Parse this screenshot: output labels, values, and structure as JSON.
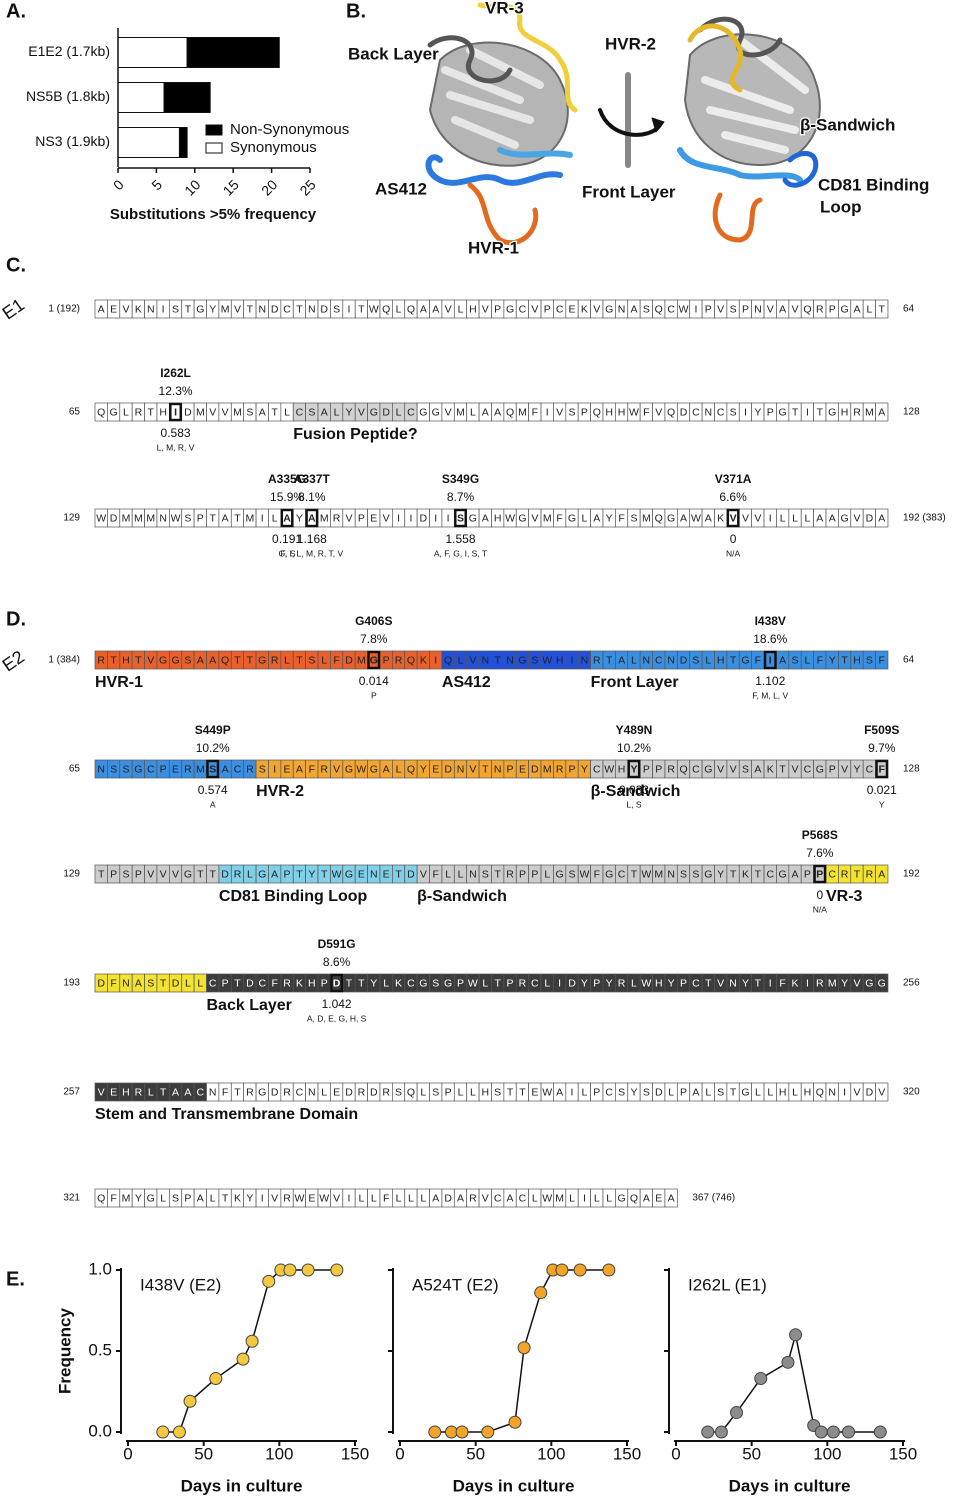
{
  "panel_labels": [
    "A.",
    "B.",
    "C.",
    "D.",
    "E."
  ],
  "chart_data": [
    {
      "type": "bar",
      "orientation": "horizontal",
      "stacked": true,
      "categories": [
        "E1E2 (1.7kb)",
        "NS5B (1.8kb)",
        "NS3 (1.9kb)"
      ],
      "series": [
        {
          "name": "Synonymous",
          "color": "#ffffff",
          "values": [
            9,
            6,
            8
          ]
        },
        {
          "name": "Non-Synonymous",
          "color": "#000000",
          "values": [
            12,
            6,
            1
          ]
        }
      ],
      "xlim": [
        0,
        25
      ],
      "xticks": [
        0,
        5,
        10,
        15,
        20,
        25
      ],
      "xlabel": "Substitutions >5% frequency"
    },
    {
      "type": "line",
      "title": "I438V (E2)",
      "ylabel": "Frequency",
      "xlabel": "Days in culture",
      "x": [
        23,
        34,
        41,
        58,
        76,
        82,
        93,
        101,
        107,
        119,
        138
      ],
      "values": [
        0,
        0,
        0.19,
        0.33,
        0.45,
        0.56,
        0.93,
        1,
        1,
        1,
        1
      ],
      "color": "#f5c842",
      "xlim": [
        0,
        150
      ],
      "xticks": [
        0,
        50,
        100,
        150
      ],
      "ylim": [
        0,
        1
      ],
      "yticks": [
        {
          "value": 0,
          "label": "0.0"
        },
        {
          "value": 0.5,
          "label": "0.5"
        },
        {
          "value": 1,
          "label": "1.0"
        }
      ]
    },
    {
      "type": "line",
      "title": "A524T (E2)",
      "xlabel": "Days in culture",
      "x": [
        23,
        34,
        41,
        58,
        76,
        82,
        93,
        101,
        107,
        119,
        138
      ],
      "values": [
        0,
        0,
        0,
        0,
        0.06,
        0.52,
        0.86,
        1,
        1,
        1,
        1
      ],
      "color": "#f2a428",
      "xlim": [
        0,
        150
      ],
      "xticks": [
        0,
        50,
        100,
        150
      ],
      "ylim": [
        0,
        1
      ],
      "yticks": [
        {
          "value": 0,
          "label": "0.0"
        },
        {
          "value": 0.5,
          "label": "0.5"
        },
        {
          "value": 1,
          "label": "1.0"
        }
      ]
    },
    {
      "type": "line",
      "title": "I262L (E1)",
      "xlabel": "Days in culture",
      "x": [
        21,
        30,
        40,
        56,
        74,
        79,
        91,
        96,
        104,
        114,
        135
      ],
      "values": [
        0,
        0,
        0.12,
        0.33,
        0.43,
        0.6,
        0.04,
        0,
        0,
        0,
        0
      ],
      "color": "#8c8c8c",
      "xlim": [
        0,
        150
      ],
      "xticks": [
        0,
        50,
        100,
        150
      ],
      "ylim": [
        0,
        1
      ],
      "yticks": [
        {
          "value": 0,
          "label": "0.0"
        },
        {
          "value": 0.5,
          "label": "0.5"
        },
        {
          "value": 1,
          "label": "1.0"
        }
      ]
    }
  ],
  "structure_labels": [
    {
      "text": "VR-3",
      "color": "#efd630"
    },
    {
      "text": "Back Layer",
      "color": "#4a4a4a"
    },
    {
      "text": "HVR-2",
      "color": "#f0a020"
    },
    {
      "text": "β-Sandwich",
      "color": "#a8a8a8"
    },
    {
      "text": "AS412",
      "color": "#1f3fb8"
    },
    {
      "text": "Front Layer",
      "color": "#3b8fe0"
    },
    {
      "text": "CD81 Binding",
      "color": "#5ab8d8"
    },
    {
      "text": "Loop",
      "color": "#5ab8d8"
    },
    {
      "text": "HVR-1",
      "color": "#d9541e"
    }
  ],
  "sequences": [
    {
      "name": "E1",
      "rows": [
        {
          "start": "1 (192)",
          "end": 64,
          "sequence": "AEVKNISTGYMVTNDCTNDSITWQLQAAVLHVPGCVPCEKVGNASQCWIPVSPNVAVQRPGALT",
          "regions": [],
          "mutations": []
        },
        {
          "start": 65,
          "end": 128,
          "sequence": "QGLRTHIDMVVMSATLCSALYVGDLCGGVMLAAQMFIVSPQHHWFVQDCNCSIYPGTITGHRMA",
          "regions": [
            {
              "from": 17,
              "to": 26,
              "color": "#d2d2d2",
              "label": "Fusion Peptide?",
              "label_color": "#a8a8a8"
            }
          ],
          "mutations": [
            {
              "position": 7,
              "name": "I262L",
              "frequency": "12.3%",
              "score": 0.583,
              "alternatives": "L, M, R, V"
            }
          ]
        },
        {
          "start": 129,
          "end": "192 (383)",
          "sequence": "WDMMMNWSPTATMILAYAMRVPEVIIDIISGAHWGVMFGLAYFSMQGAWAKVVVILLLAAGVDA",
          "regions": [],
          "mutations": [
            {
              "position": 16,
              "name": "A335G",
              "frequency": "15.9%",
              "score": 0.191,
              "alternatives": "G, S"
            },
            {
              "position": 18,
              "name": "A337T",
              "frequency": "8.1%",
              "score": 1.168,
              "alternatives": "F, I, L, M, R, T, V"
            },
            {
              "position": 30,
              "name": "S349G",
              "frequency": "8.7%",
              "score": 1.558,
              "alternatives": "A, F, G, I, S, T"
            },
            {
              "position": 52,
              "name": "V371A",
              "frequency": "6.6%",
              "score": 0,
              "alternatives": "N/A"
            }
          ]
        }
      ]
    },
    {
      "name": "E2",
      "rows": [
        {
          "start": "1 (384)",
          "end": 64,
          "sequence": "RTHTVGGSAAQTTGRLTSLFDMGPRQKIQLVNTNGSWHINRTALNCNDSLHTGFIASLFYTHSF",
          "regions": [
            {
              "from": 1,
              "to": 28,
              "color": "#e8602c",
              "label": "HVR-1",
              "label_color": "#d9541e"
            },
            {
              "from": 29,
              "to": 40,
              "color": "#2350d8",
              "label": "AS412",
              "label_color": "#1f3fb8"
            },
            {
              "from": 41,
              "to": 64,
              "color": "#3b8fe0",
              "label": "Front Layer",
              "label_color": "#3b8fe0"
            }
          ],
          "mutations": [
            {
              "position": 23,
              "name": "G406S",
              "frequency": "7.8%",
              "score": 0.014,
              "alternatives": "P"
            },
            {
              "position": 55,
              "name": "I438V",
              "frequency": "18.6%",
              "score": 1.102,
              "alternatives": "F, M, L, V"
            }
          ]
        },
        {
          "start": 65,
          "end": 128,
          "sequence": "NSSGCPERMSACRSIEAFRVGWGALQYEDNVTNPEDMRPYCWHYPPRQCGVVSAKTVCGPVYCF",
          "regions": [
            {
              "from": 1,
              "to": 13,
              "color": "#3b8fe0"
            },
            {
              "from": 14,
              "to": 40,
              "color": "#f2a530",
              "label": "HVR-2",
              "label_color": "#f0a020"
            },
            {
              "from": 41,
              "to": 64,
              "color": "#cccccc",
              "label": "β-Sandwich",
              "label_color": "#a8a8a8"
            }
          ],
          "mutations": [
            {
              "position": 10,
              "name": "S449P",
              "frequency": "10.2%",
              "score": 0.574,
              "alternatives": "A"
            },
            {
              "position": 44,
              "name": "Y489N",
              "frequency": "10.2%",
              "score": 0.033,
              "alternatives": "L, S"
            },
            {
              "position": 64,
              "name": "F509S",
              "frequency": "9.7%",
              "score": 0.021,
              "alternatives": "Y"
            }
          ]
        },
        {
          "start": 129,
          "end": 192,
          "sequence": "TPSPVVVGTTDRLGAPTYTWGENETDVFLLNSTRPPLGSWFGCTWMNSSGYTKTCGAPPCRTRA",
          "regions": [
            {
              "from": 1,
              "to": 10,
              "color": "#cccccc"
            },
            {
              "from": 11,
              "to": 26,
              "color": "#7fd0e8",
              "label": "CD81 Binding Loop",
              "label_color": "#5ab8d8"
            },
            {
              "from": 27,
              "to": 59,
              "color": "#cccccc",
              "label": "β-Sandwich",
              "label_color": "#a8a8a8"
            },
            {
              "from": 60,
              "to": 64,
              "color": "#f3e230",
              "label": "VR-3",
              "label_color": "#e0cc00"
            }
          ],
          "mutations": [
            {
              "position": 59,
              "name": "P568S",
              "frequency": "7.6%",
              "score": 0,
              "alternatives": "N/A"
            }
          ]
        },
        {
          "start": 193,
          "end": 256,
          "sequence": "DFNASTDLLCPTDCFRKHPDTTYLKCGSGPWLTPRCLIDYPYRLWHYPCTVNYTIFKIRMYVGG",
          "regions": [
            {
              "from": 1,
              "to": 9,
              "color": "#f3e230"
            },
            {
              "from": 10,
              "to": 64,
              "color": "#3c3c3c",
              "text_color": "#ffffff",
              "label": "Back Layer",
              "label_color": "#444444"
            }
          ],
          "mutations": [
            {
              "position": 20,
              "name": "D591G",
              "frequency": "8.6%",
              "score": 1.042,
              "alternatives": "A, D, E, G, H, S"
            }
          ]
        },
        {
          "start": 257,
          "end": 320,
          "sequence": "VEHRLTAACNFTRGDRCNLEDRDRSQLSPLLHSTTEWAILPCSYSDLPALSTGLLHLHQNIVDV",
          "regions": [
            {
              "from": 1,
              "to": 9,
              "color": "#3c3c3c",
              "text_color": "#ffffff",
              "label": "Stem and Transmembrane Domain",
              "label_color": "#111111"
            }
          ],
          "mutations": []
        },
        {
          "start": 321,
          "end": "367 (746)",
          "sequence": "QFMYGLSPALTKYIVRWEWVILLFLLLADARVCACLWMLILLGQAEA",
          "regions": [],
          "mutations": []
        }
      ]
    }
  ]
}
